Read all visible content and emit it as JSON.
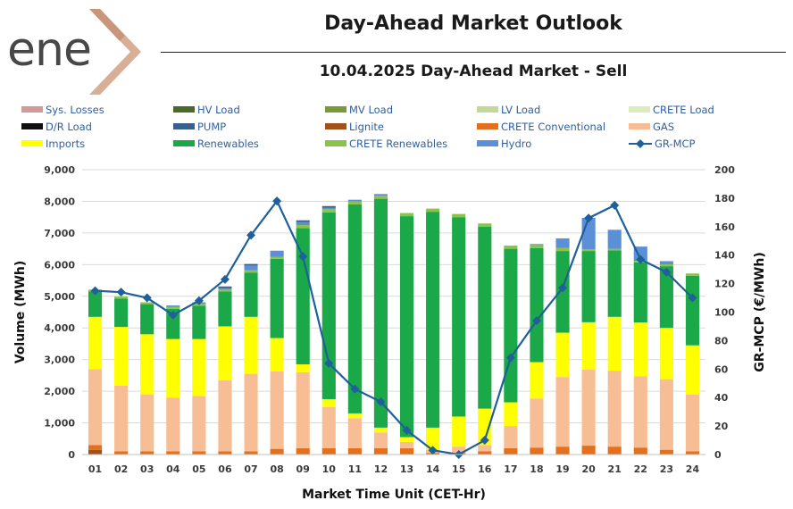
{
  "logo": {
    "text": "ene",
    "alt": "enex logo"
  },
  "header": {
    "title": "Day-Ahead Market Outlook",
    "subtitle": "10.04.2025  Day-Ahead Market - Sell"
  },
  "colors": {
    "sys_losses": "#d49a9a",
    "hv_load": "#4a6a2a",
    "mv_load": "#7a9a3a",
    "lv_load": "#c4d89a",
    "crete_load": "#dcebc0",
    "dr_load": "#111111",
    "pump": "#3a5f8c",
    "lignite": "#a0521a",
    "crete_conventional": "#e2701d",
    "gas": "#f7be95",
    "imports": "#ffff00",
    "renewables": "#1aa848",
    "crete_renewables": "#8bc34a",
    "hydro": "#5b8fd6",
    "gr_mcp": "#1f5f9a"
  },
  "chart_data": {
    "type": "bar",
    "title": "10.04.2025  Day-Ahead Market - Sell",
    "xlabel": "Market Time Unit (CET-Hr)",
    "ylabel": "Volume (MWh)",
    "y2label": "GR-MCP (€/MWh)",
    "ylim": [
      0,
      9000
    ],
    "y2lim": [
      0,
      200
    ],
    "yticks": [
      "0",
      "1,000",
      "2,000",
      "3,000",
      "4,000",
      "5,000",
      "6,000",
      "7,000",
      "8,000",
      "9,000"
    ],
    "y2ticks": [
      "0",
      "20",
      "40",
      "60",
      "80",
      "100",
      "120",
      "140",
      "160",
      "180",
      "200"
    ],
    "legend_position": "top",
    "categories": [
      "01",
      "02",
      "03",
      "04",
      "05",
      "06",
      "07",
      "08",
      "09",
      "10",
      "11",
      "12",
      "13",
      "14",
      "15",
      "16",
      "17",
      "18",
      "19",
      "20",
      "21",
      "22",
      "23",
      "24"
    ],
    "legend": [
      {
        "key": "sys_losses",
        "name": "Sys. Losses",
        "kind": "bar"
      },
      {
        "key": "hv_load",
        "name": "HV Load",
        "kind": "bar"
      },
      {
        "key": "mv_load",
        "name": "MV Load",
        "kind": "bar"
      },
      {
        "key": "lv_load",
        "name": "LV Load",
        "kind": "bar"
      },
      {
        "key": "crete_load",
        "name": "CRETE Load",
        "kind": "bar"
      },
      {
        "key": "dr_load",
        "name": "D/R Load",
        "kind": "bar"
      },
      {
        "key": "pump",
        "name": "PUMP",
        "kind": "bar"
      },
      {
        "key": "lignite",
        "name": "Lignite",
        "kind": "bar"
      },
      {
        "key": "crete_conventional",
        "name": "CRETE Conventional",
        "kind": "bar"
      },
      {
        "key": "gas",
        "name": "GAS",
        "kind": "bar"
      },
      {
        "key": "imports",
        "name": "Imports",
        "kind": "bar"
      },
      {
        "key": "renewables",
        "name": "Renewables",
        "kind": "bar"
      },
      {
        "key": "crete_renewables",
        "name": "CRETE Renewables",
        "kind": "bar"
      },
      {
        "key": "hydro",
        "name": "Hydro",
        "kind": "bar"
      },
      {
        "key": "gr_mcp",
        "name": "GR-MCP",
        "kind": "line"
      }
    ],
    "series": [
      {
        "name": "Lignite",
        "key": "lignite",
        "values": [
          150,
          0,
          0,
          0,
          0,
          0,
          0,
          0,
          0,
          0,
          0,
          0,
          0,
          0,
          0,
          0,
          0,
          0,
          0,
          0,
          0,
          0,
          0,
          0
        ]
      },
      {
        "name": "CRETE Conventional",
        "key": "crete_conventional",
        "values": [
          150,
          100,
          100,
          100,
          100,
          100,
          100,
          180,
          200,
          200,
          200,
          200,
          200,
          50,
          50,
          100,
          200,
          220,
          250,
          280,
          250,
          220,
          150,
          100
        ]
      },
      {
        "name": "GAS",
        "key": "gas",
        "values": [
          2400,
          2080,
          1800,
          1700,
          1750,
          2250,
          2450,
          2450,
          2400,
          1300,
          950,
          500,
          200,
          100,
          200,
          200,
          700,
          1550,
          2200,
          2400,
          2400,
          2250,
          2230,
          1800
        ]
      },
      {
        "name": "Imports",
        "key": "imports",
        "values": [
          1650,
          1850,
          1900,
          1850,
          1800,
          1700,
          1800,
          1050,
          250,
          250,
          150,
          150,
          150,
          700,
          950,
          1150,
          750,
          1150,
          1400,
          1500,
          1700,
          1700,
          1620,
          1550
        ]
      },
      {
        "name": "Renewables",
        "key": "renewables",
        "values": [
          800,
          900,
          950,
          950,
          1050,
          1100,
          1400,
          2500,
          4300,
          5900,
          6600,
          7230,
          6980,
          6820,
          6300,
          5750,
          4850,
          3600,
          2580,
          2250,
          2100,
          1900,
          1950,
          2200
        ]
      },
      {
        "name": "CRETE Renewables",
        "key": "crete_renewables",
        "values": [
          60,
          60,
          60,
          60,
          60,
          60,
          70,
          60,
          100,
          100,
          100,
          100,
          100,
          100,
          100,
          100,
          100,
          100,
          100,
          50,
          50,
          50,
          60,
          70
        ]
      },
      {
        "name": "Hydro",
        "key": "hydro",
        "values": [
          0,
          0,
          0,
          50,
          50,
          50,
          150,
          200,
          100,
          50,
          50,
          50,
          0,
          0,
          0,
          0,
          0,
          30,
          300,
          1000,
          600,
          450,
          100,
          0
        ]
      },
      {
        "name": "PUMP",
        "key": "pump",
        "values": [
          0,
          0,
          0,
          0,
          0,
          50,
          50,
          0,
          50,
          50,
          0,
          0,
          0,
          0,
          0,
          0,
          0,
          0,
          0,
          0,
          0,
          0,
          0,
          0
        ]
      }
    ],
    "line": {
      "name": "GR-MCP",
      "key": "gr_mcp",
      "axis": "right",
      "values": [
        115,
        114,
        110,
        98,
        108,
        123,
        154,
        178,
        139,
        64,
        46,
        37,
        17,
        3,
        0,
        10,
        68,
        94,
        117,
        166,
        175,
        137,
        128,
        110
      ]
    }
  }
}
